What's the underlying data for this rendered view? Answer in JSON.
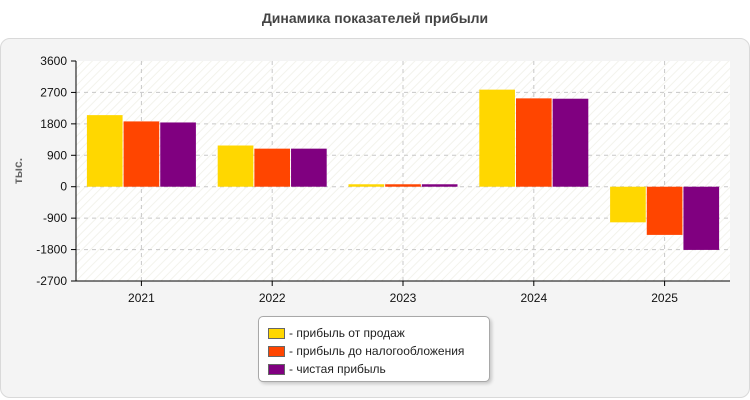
{
  "colors": {
    "sales": "#ffd700",
    "pretax": "#ff4500",
    "net": "#800080"
  },
  "chart_data": {
    "type": "bar",
    "title": "Динамика показателей прибыли",
    "ylabel": "тыс.",
    "xlabel": "",
    "categories": [
      "2021",
      "2022",
      "2023",
      "2024",
      "2025"
    ],
    "ylim": [
      -2700,
      3600
    ],
    "yticks": [
      3600,
      2700,
      1800,
      900,
      0,
      -900,
      -1800,
      -2700
    ],
    "ytick_labels": [
      "3600",
      "2700",
      "1800",
      "900",
      "0",
      "-900",
      "-1800",
      "-2700"
    ],
    "grid": true,
    "legend_position": "bottom",
    "series": [
      {
        "name": "- прибыль от продаж",
        "color": "#ffd700",
        "values": [
          2050,
          1180,
          70,
          2780,
          -1020
        ]
      },
      {
        "name": "- прибыль до налогообложения",
        "color": "#ff4500",
        "values": [
          1870,
          1090,
          70,
          2530,
          -1380
        ]
      },
      {
        "name": "- чистая прибыль",
        "color": "#800080",
        "values": [
          1840,
          1090,
          70,
          2520,
          -1810
        ]
      }
    ]
  }
}
